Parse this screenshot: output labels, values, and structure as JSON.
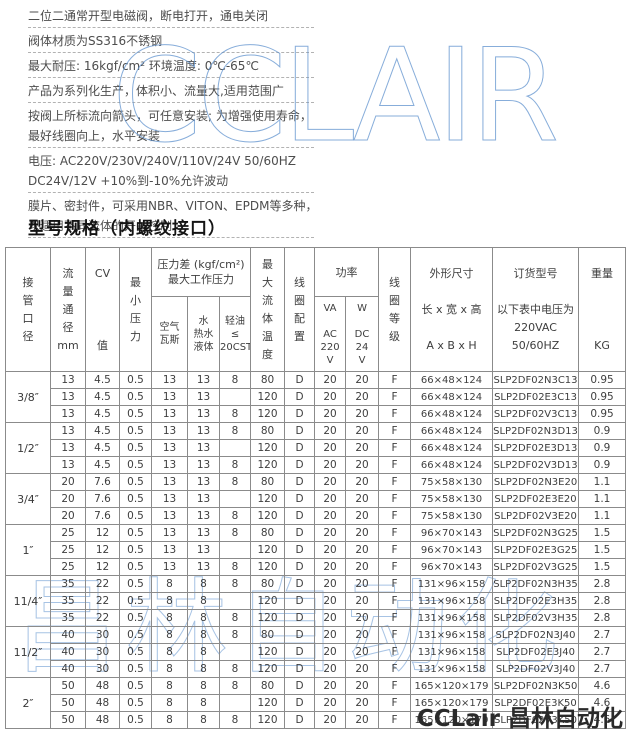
{
  "page": {
    "title": "型号规格（内螺纹接口）",
    "watermarks": {
      "top": "CCLAIR",
      "middle": "昌林自动化",
      "corner": "CCLair 昌林自动化"
    },
    "notes": [
      {
        "lines": [
          "二位二通常开型电磁阀，断电打开，通电关闭"
        ]
      },
      {
        "lines": [
          "阀体材质为SS316不锈钢"
        ]
      },
      {
        "lines": [
          "最大耐压: 16kgf/cm²  环境温度: 0℃-65℃"
        ]
      },
      {
        "lines": [
          "产品为系列化生产，体积小、流量大,适用范围广"
        ]
      },
      {
        "lines": [
          "按阀上所标流向箭头，可任意安装; 为增强使用寿命，",
          "最好线圈向上，水平安装"
        ]
      },
      {
        "lines": [
          "电压: AC220V/230V/240V/110V/24V 50/60HZ",
          "DC24V/12V +10%到-10%允许波动"
        ]
      },
      {
        "lines": [
          "膜片、密封件，可采用NBR、VITON、EPDM等多种，",
          "以适用不同流体的开关控制"
        ]
      }
    ]
  },
  "table": {
    "headers": {
      "pipe_size": "接\n管\n口\n径",
      "flow_dia": "流\n量\n通\n径\nmm",
      "cv": "CV\n\n\n\n值",
      "min_pressure": "最\n小\n压\n力",
      "pressure_diff_group": "压力差 (kgf/cm²)\n最大工作压力",
      "air_gas": "空气\n瓦斯",
      "water": "水\n热水\n液体",
      "light_oil": "轻油\n≤\n20CST",
      "max_fluid_temp": "最\n大\n流\n体\n温\n度",
      "coil_config": "线\n圈\n配\n置",
      "power_group": "功率",
      "va": "VA\n\nAC\n220\nV",
      "w": "W\n\nDC\n24\nV",
      "coil_grade": "线\n圈\n等\n级",
      "dimensions": "外形尺寸\n\n长 x 宽 x 高\n\nA x B x H",
      "order_model": "订货型号\n\n以下表中电压为\n220VAC\n50/60HZ",
      "weight": "重量\n\n\n\nKG"
    },
    "groups": [
      {
        "size": "3/8″",
        "rows": [
          [
            "13",
            "4.5",
            "0.5",
            "13",
            "13",
            "8",
            "80",
            "D",
            "20",
            "20",
            "F",
            "66×48×124",
            "SLP2DF02N3C13",
            "0.95"
          ],
          [
            "13",
            "4.5",
            "0.5",
            "13",
            "13",
            "",
            "120",
            "D",
            "20",
            "20",
            "F",
            "66×48×124",
            "SLP2DF02E3C13",
            "0.95"
          ],
          [
            "13",
            "4.5",
            "0.5",
            "13",
            "13",
            "8",
            "120",
            "D",
            "20",
            "20",
            "F",
            "66×48×124",
            "SLP2DF02V3C13",
            "0.95"
          ]
        ]
      },
      {
        "size": "1/2″",
        "rows": [
          [
            "13",
            "4.5",
            "0.5",
            "13",
            "13",
            "8",
            "80",
            "D",
            "20",
            "20",
            "F",
            "66×48×124",
            "SLP2DF02N3D13",
            "0.9"
          ],
          [
            "13",
            "4.5",
            "0.5",
            "13",
            "13",
            "",
            "120",
            "D",
            "20",
            "20",
            "F",
            "66×48×124",
            "SLP2DF02E3D13",
            "0.9"
          ],
          [
            "13",
            "4.5",
            "0.5",
            "13",
            "13",
            "8",
            "120",
            "D",
            "20",
            "20",
            "F",
            "66×48×124",
            "SLP2DF02V3D13",
            "0.9"
          ]
        ]
      },
      {
        "size": "3/4″",
        "rows": [
          [
            "20",
            "7.6",
            "0.5",
            "13",
            "13",
            "8",
            "80",
            "D",
            "20",
            "20",
            "F",
            "75×58×130",
            "SLP2DF02N3E20",
            "1.1"
          ],
          [
            "20",
            "7.6",
            "0.5",
            "13",
            "13",
            "",
            "120",
            "D",
            "20",
            "20",
            "F",
            "75×58×130",
            "SLP2DF02E3E20",
            "1.1"
          ],
          [
            "20",
            "7.6",
            "0.5",
            "13",
            "13",
            "8",
            "120",
            "D",
            "20",
            "20",
            "F",
            "75×58×130",
            "SLP2DF02V3E20",
            "1.1"
          ]
        ]
      },
      {
        "size": "1″",
        "rows": [
          [
            "25",
            "12",
            "0.5",
            "13",
            "13",
            "8",
            "80",
            "D",
            "20",
            "20",
            "F",
            "96×70×143",
            "SLP2DF02N3G25",
            "1.5"
          ],
          [
            "25",
            "12",
            "0.5",
            "13",
            "13",
            "",
            "120",
            "D",
            "20",
            "20",
            "F",
            "96×70×143",
            "SLP2DF02E3G25",
            "1.5"
          ],
          [
            "25",
            "12",
            "0.5",
            "13",
            "13",
            "8",
            "120",
            "D",
            "20",
            "20",
            "F",
            "96×70×143",
            "SLP2DF02V3G25",
            "1.5"
          ]
        ]
      },
      {
        "size": "11/4″",
        "rows": [
          [
            "35",
            "22",
            "0.5",
            "8",
            "8",
            "8",
            "80",
            "D",
            "20",
            "20",
            "F",
            "131×96×158",
            "SLP2DF02N3H35",
            "2.8"
          ],
          [
            "35",
            "22",
            "0.5",
            "8",
            "8",
            "",
            "120",
            "D",
            "20",
            "20",
            "F",
            "131×96×158",
            "SLP2DF02E3H35",
            "2.8"
          ],
          [
            "35",
            "22",
            "0.5",
            "8",
            "8",
            "8",
            "120",
            "D",
            "20",
            "20",
            "F",
            "131×96×158",
            "SLP2DF02V3H35",
            "2.8"
          ]
        ]
      },
      {
        "size": "11/2″",
        "rows": [
          [
            "40",
            "30",
            "0.5",
            "8",
            "8",
            "8",
            "80",
            "D",
            "20",
            "20",
            "F",
            "131×96×158",
            "SLP2DF02N3J40",
            "2.7"
          ],
          [
            "40",
            "30",
            "0.5",
            "8",
            "8",
            "",
            "120",
            "D",
            "20",
            "20",
            "F",
            "131×96×158",
            "SLP2DF02E3J40",
            "2.7"
          ],
          [
            "40",
            "30",
            "0.5",
            "8",
            "8",
            "8",
            "120",
            "D",
            "20",
            "20",
            "F",
            "131×96×158",
            "SLP2DF02V3J40",
            "2.7"
          ]
        ]
      },
      {
        "size": "2″",
        "rows": [
          [
            "50",
            "48",
            "0.5",
            "8",
            "8",
            "8",
            "80",
            "D",
            "20",
            "20",
            "F",
            "165×120×179",
            "SLP2DF02N3K50",
            "4.6"
          ],
          [
            "50",
            "48",
            "0.5",
            "8",
            "8",
            "",
            "120",
            "D",
            "20",
            "20",
            "F",
            "165×120×179",
            "SLP2DF02E3K50",
            "4.6"
          ],
          [
            "50",
            "48",
            "0.5",
            "8",
            "8",
            "8",
            "120",
            "D",
            "20",
            "20",
            "F",
            "165×120×179",
            "SLP2DF02V3K50",
            "4.6"
          ]
        ]
      }
    ]
  }
}
